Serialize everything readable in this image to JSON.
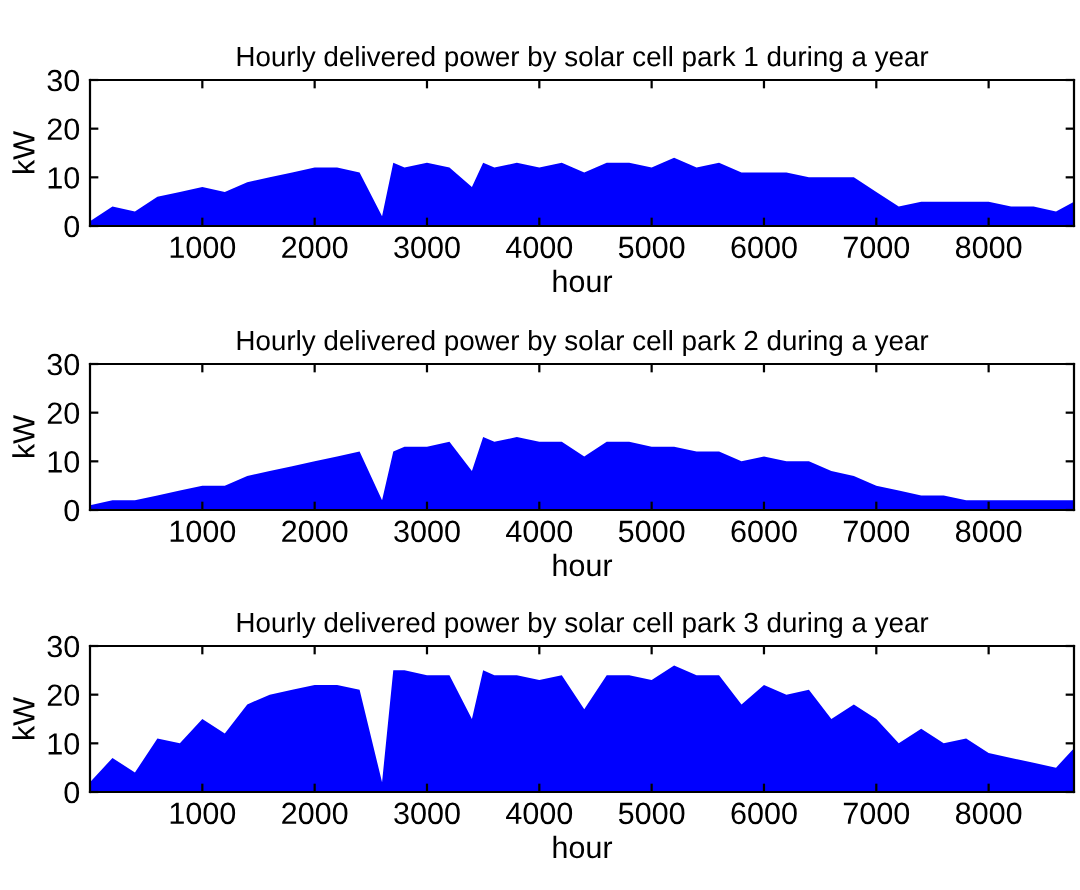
{
  "chart_data": [
    {
      "type": "area",
      "title": "Hourly delivered power by solar cell park 1 during a year",
      "xlabel": "hour",
      "ylabel": "kW",
      "x": [
        0,
        200,
        400,
        600,
        800,
        1000,
        1200,
        1400,
        1600,
        1800,
        2000,
        2200,
        2400,
        2600,
        2700,
        2800,
        3000,
        3200,
        3400,
        3500,
        3600,
        3800,
        4000,
        4200,
        4400,
        4600,
        4800,
        5000,
        5200,
        5400,
        5600,
        5800,
        6000,
        6200,
        6400,
        6600,
        6800,
        7000,
        7200,
        7400,
        7600,
        7800,
        8000,
        8200,
        8400,
        8600,
        8760
      ],
      "series": [
        {
          "color": "#0000ff",
          "values": [
            1,
            4,
            3,
            6,
            7,
            8,
            7,
            9,
            10,
            11,
            12,
            12,
            11,
            2,
            13,
            12,
            13,
            12,
            8,
            13,
            12,
            13,
            12,
            13,
            11,
            13,
            13,
            12,
            14,
            12,
            13,
            11,
            11,
            11,
            10,
            10,
            10,
            7,
            4,
            5,
            5,
            5,
            5,
            4,
            4,
            3,
            5
          ]
        }
      ],
      "xlim": [
        0,
        8760
      ],
      "xticks": [
        1000,
        2000,
        3000,
        4000,
        5000,
        6000,
        7000,
        8000
      ],
      "ylim": [
        0,
        30
      ],
      "yticks": [
        0,
        10,
        20,
        30
      ],
      "grid": false
    },
    {
      "type": "area",
      "title": "Hourly delivered power by solar cell park 2 during a year",
      "xlabel": "hour",
      "ylabel": "kW",
      "x": [
        0,
        200,
        400,
        600,
        800,
        1000,
        1200,
        1400,
        1600,
        1800,
        2000,
        2200,
        2400,
        2600,
        2700,
        2800,
        3000,
        3200,
        3400,
        3500,
        3600,
        3800,
        4000,
        4200,
        4400,
        4600,
        4800,
        5000,
        5200,
        5400,
        5600,
        5800,
        6000,
        6200,
        6400,
        6600,
        6800,
        7000,
        7200,
        7400,
        7600,
        7800,
        8000,
        8200,
        8400,
        8600,
        8760
      ],
      "series": [
        {
          "color": "#0000ff",
          "values": [
            1,
            2,
            2,
            3,
            4,
            5,
            5,
            7,
            8,
            9,
            10,
            11,
            12,
            2,
            12,
            13,
            13,
            14,
            8,
            15,
            14,
            15,
            14,
            14,
            11,
            14,
            14,
            13,
            13,
            12,
            12,
            10,
            11,
            10,
            10,
            8,
            7,
            5,
            4,
            3,
            3,
            2,
            2,
            2,
            2,
            2,
            2
          ]
        }
      ],
      "xlim": [
        0,
        8760
      ],
      "xticks": [
        1000,
        2000,
        3000,
        4000,
        5000,
        6000,
        7000,
        8000
      ],
      "ylim": [
        0,
        30
      ],
      "yticks": [
        0,
        10,
        20,
        30
      ],
      "grid": false
    },
    {
      "type": "area",
      "title": "Hourly delivered power by solar cell park 3 during a year",
      "xlabel": "hour",
      "ylabel": "kW",
      "x": [
        0,
        200,
        400,
        600,
        800,
        1000,
        1200,
        1400,
        1600,
        1800,
        2000,
        2200,
        2400,
        2600,
        2700,
        2800,
        3000,
        3200,
        3400,
        3500,
        3600,
        3800,
        4000,
        4200,
        4400,
        4600,
        4800,
        5000,
        5200,
        5400,
        5600,
        5800,
        6000,
        6200,
        6400,
        6600,
        6800,
        7000,
        7200,
        7400,
        7600,
        7800,
        8000,
        8200,
        8400,
        8600,
        8760
      ],
      "series": [
        {
          "color": "#0000ff",
          "values": [
            2,
            7,
            4,
            11,
            10,
            15,
            12,
            18,
            20,
            21,
            22,
            22,
            21,
            2,
            25,
            25,
            24,
            24,
            15,
            25,
            24,
            24,
            23,
            24,
            17,
            24,
            24,
            23,
            26,
            24,
            24,
            18,
            22,
            20,
            21,
            15,
            18,
            15,
            10,
            13,
            10,
            11,
            8,
            7,
            6,
            5,
            9
          ]
        }
      ],
      "xlim": [
        0,
        8760
      ],
      "xticks": [
        1000,
        2000,
        3000,
        4000,
        5000,
        6000,
        7000,
        8000
      ],
      "ylim": [
        0,
        30
      ],
      "yticks": [
        0,
        10,
        20,
        30
      ],
      "grid": false
    }
  ]
}
